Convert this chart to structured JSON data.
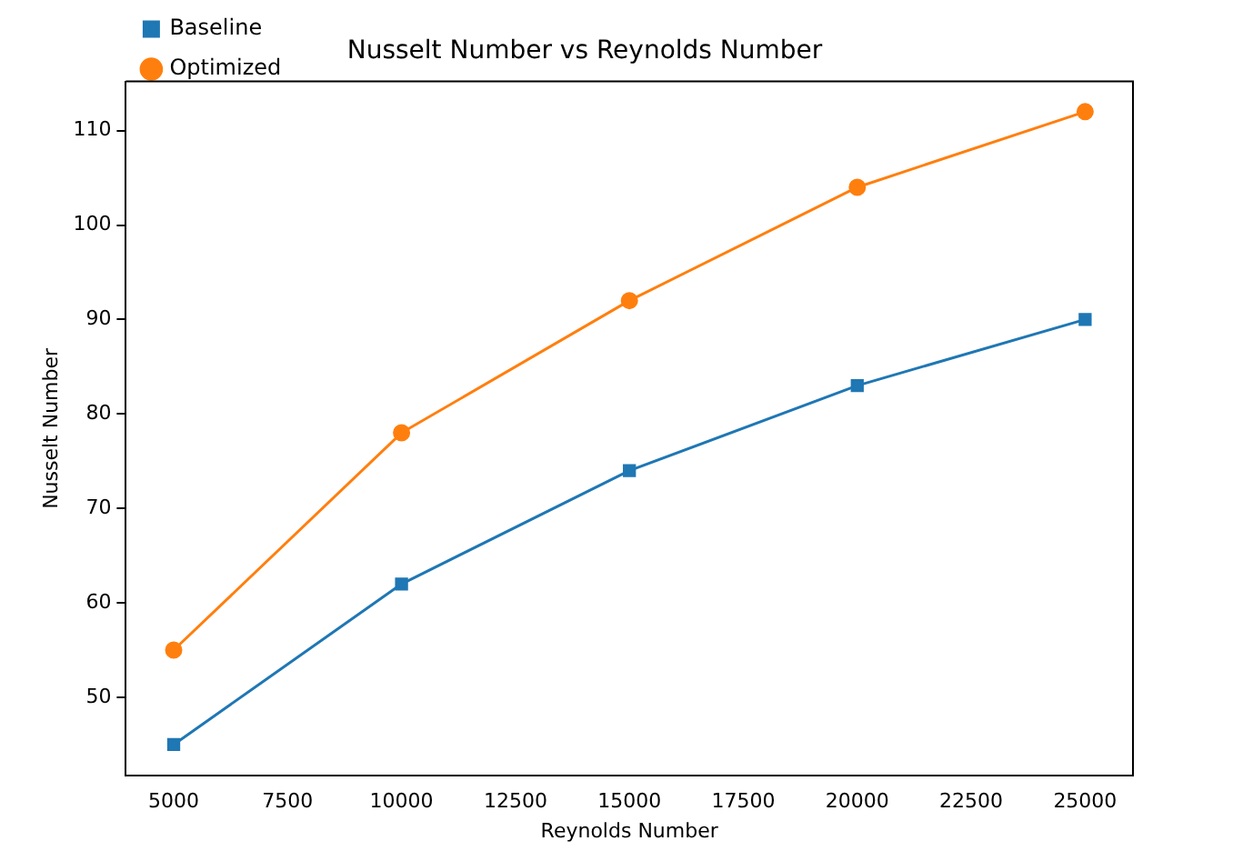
{
  "chart_data": {
    "type": "line",
    "title": "Nusselt Number vs Reynolds Number",
    "xlabel": "Reynolds Number",
    "ylabel": "Nusselt Number",
    "x": [
      5000,
      10000,
      15000,
      20000,
      25000
    ],
    "series": [
      {
        "name": "Baseline",
        "color": "#1f77b4",
        "marker": "square",
        "values": [
          45,
          62,
          74,
          83,
          90
        ]
      },
      {
        "name": "Optimized",
        "color": "#ff7f0e",
        "marker": "circle",
        "values": [
          55,
          78,
          92,
          104,
          112
        ]
      }
    ],
    "xlim": [
      3950,
      26050
    ],
    "xticks": [
      5000,
      7500,
      10000,
      12500,
      15000,
      17500,
      20000,
      22500,
      25000
    ],
    "ylim": [
      41.7,
      115.2
    ],
    "yticks": [
      50,
      60,
      70,
      80,
      90,
      100,
      110
    ],
    "grid": false,
    "legend": "top left",
    "line_style": "solid"
  }
}
